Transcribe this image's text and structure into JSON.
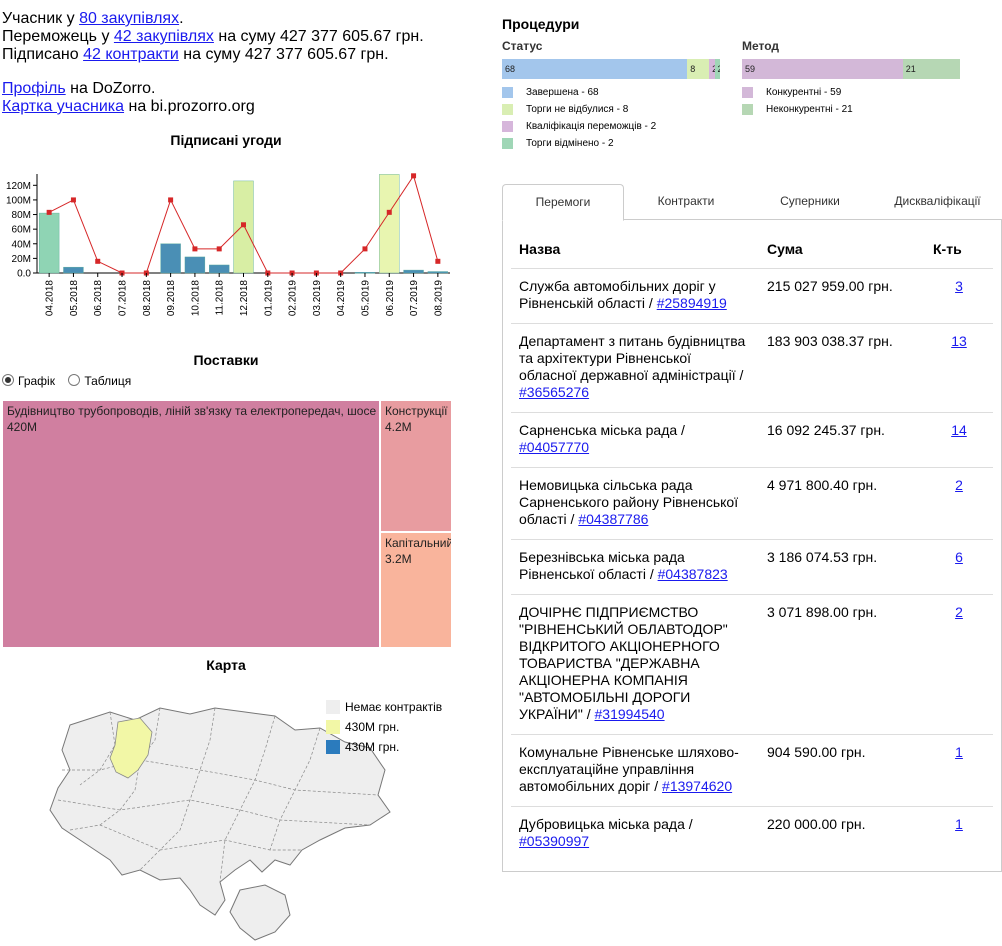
{
  "summary": {
    "line1_prefix": "Учасник у ",
    "line1_link": "80 закупівлях",
    "line1_suffix": ".",
    "line2_prefix": "Переможець у ",
    "line2_link": "42 закупівлях",
    "line2_suffix": " на суму 427 377 605.67 грн.",
    "line3_prefix": "Підписано ",
    "line3_link": "42 контракти",
    "line3_suffix": " на суму 427 377 605.67 грн.",
    "profile_link": "Профіль",
    "profile_suffix": " на DoZorro.",
    "card_link": "Картка учасника",
    "card_suffix": " на bi.prozorro.org"
  },
  "signed": {
    "title": "Підписані угоди",
    "chart_data": {
      "type": "bar",
      "categories": [
        "04.2018",
        "05.2018",
        "06.2018",
        "07.2018",
        "08.2018",
        "09.2018",
        "10.2018",
        "11.2018",
        "12.2018",
        "01.2019",
        "02.2019",
        "03.2019",
        "04.2019",
        "05.2019",
        "06.2019",
        "07.2019",
        "08.2019"
      ],
      "yticks": [
        "0.0",
        "20M",
        "40M",
        "60M",
        "80M",
        "100M",
        "120M"
      ],
      "ylim": [
        0,
        130
      ],
      "series": [
        {
          "kind": "bar",
          "values": [
            82,
            8,
            0,
            0,
            0,
            40,
            22,
            11,
            126,
            0,
            0,
            0,
            0,
            1,
            135,
            4,
            2
          ],
          "colors": [
            "#8fd4b4",
            "#4a8fb5",
            "#4a8fb5",
            "#4a8fb5",
            "#4a8fb5",
            "#4a8fb5",
            "#4a8fb5",
            "#4a8fb5",
            "#d8eea4",
            "#4a8fb5",
            "#4a8fb5",
            "#4a8fb5",
            "#4a8fb5",
            "#4a8fb5",
            "#e8f5b0",
            "#4a8fb5",
            "#4a8fb5"
          ]
        },
        {
          "kind": "line",
          "values": [
            83,
            100,
            16,
            0,
            0,
            100,
            33,
            33,
            66,
            0,
            0,
            0,
            0,
            33,
            83,
            133,
            16
          ],
          "color": "#d62728"
        }
      ]
    }
  },
  "deliveries": {
    "title": "Поставки",
    "radio_chart": "Графік",
    "radio_table": "Таблиця",
    "cells": [
      {
        "label": "Будівництво трубопроводів, ліній зв'язку та електропередач, шосе",
        "value": "420M",
        "color": "#d07fa0"
      },
      {
        "label": "Конструкції",
        "value": "4.2M",
        "color": "#e89ca0"
      },
      {
        "label": "Капітальний",
        "value": "3.2M",
        "color": "#f9b49c"
      }
    ]
  },
  "map": {
    "title": "Карта",
    "legend": [
      {
        "label": "Немає контрактів",
        "color": "#eeeeee"
      },
      {
        "label": "430M грн.",
        "color": "#f2f7a6"
      },
      {
        "label": "430M грн.",
        "color": "#2b7bbd"
      }
    ]
  },
  "procedures": {
    "title": "Процедури",
    "status_title": "Статус",
    "method_title": "Метод",
    "status": [
      {
        "label": "Завершена - 68",
        "value": 68,
        "color": "#a3c6ec"
      },
      {
        "label": "Торги не відбулися - 8",
        "value": 8,
        "color": "#d9eeb3"
      },
      {
        "label": "Кваліфікація переможців - 2",
        "value": 2,
        "color": "#d6b6db"
      },
      {
        "label": "Торги відмінено - 2",
        "value": 2,
        "color": "#9fd6b6"
      }
    ],
    "method": [
      {
        "label": "Конкурентні - 59",
        "value": 59,
        "color": "#d3b8d8"
      },
      {
        "label": "Неконкурентні - 21",
        "value": 21,
        "color": "#b6d7b4"
      }
    ]
  },
  "tabs": [
    "Перемоги",
    "Контракти",
    "Суперники",
    "Дискваліфікації"
  ],
  "wins": {
    "headers": [
      "Назва",
      "Сума",
      "К-ть"
    ],
    "rows": [
      {
        "name": "Служба автомобільних доріг у Рівненській області / ",
        "code": "#25894919",
        "sum": "215 027 959.00 грн.",
        "count": "3"
      },
      {
        "name": "Департамент з питань будівництва та архітектури Рівненської обласної державної адміністрації / ",
        "code": "#36565276",
        "sum": "183 903 038.37 грн.",
        "count": "13"
      },
      {
        "name": "Сарненська міська рада / ",
        "code": "#04057770",
        "sum": "16 092 245.37 грн.",
        "count": "14"
      },
      {
        "name": "Немовицька сільська рада Сарненського району Рівненської області / ",
        "code": "#04387786",
        "sum": "4 971 800.40 грн.",
        "count": "2"
      },
      {
        "name": "Березнівська міська рада Рівненської області / ",
        "code": "#04387823",
        "sum": "3 186 074.53 грн.",
        "count": "6"
      },
      {
        "name": "ДОЧІРНЄ ПІДПРИЄМСТВО \"РІВНЕНСЬКИЙ ОБЛАВТОДОР\" ВІДКРИТОГО АКЦІОНЕРНОГО ТОВАРИСТВА \"ДЕРЖАВНА АКЦІОНЕРНА КОМПАНІЯ \"АВТОМОБІЛЬНІ ДОРОГИ УКРАЇНИ\" / ",
        "code": "#31994540",
        "sum": "3 071 898.00 грн.",
        "count": "2"
      },
      {
        "name": "Комунальне Рівненське шляхово-експлуатаційне управління автомобільних доріг / ",
        "code": "#13974620",
        "sum": "904 590.00 грн.",
        "count": "1"
      },
      {
        "name": "Дубровицька міська рада / ",
        "code": "#05390997",
        "sum": "220 000.00 грн.",
        "count": "1"
      }
    ]
  }
}
